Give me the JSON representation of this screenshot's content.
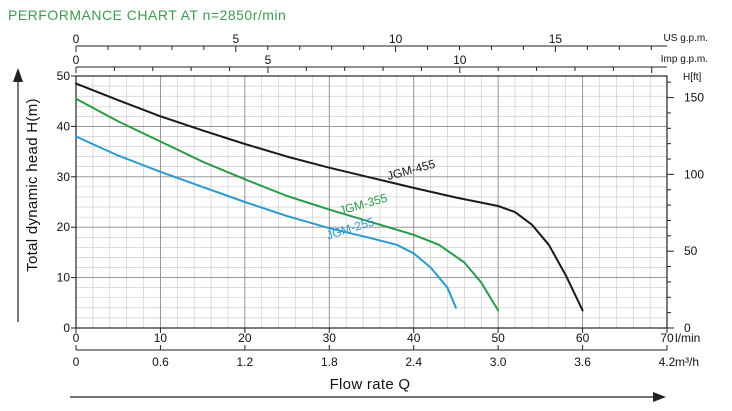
{
  "chart_data": {
    "type": "line",
    "title": "PERFORMANCE CHART AT n=2850r/min",
    "title_color": "#3f9a4f",
    "xlabel": "Flow rate Q",
    "ylabel": "Total dynamic head H(m)",
    "xlim": [
      0,
      70
    ],
    "ylim": [
      0,
      50
    ],
    "grid": true,
    "x_ticks": [
      0,
      10,
      20,
      30,
      40,
      50,
      60,
      70
    ],
    "x_unit": "l/min",
    "x_ticks_m3h": [
      "0",
      "0.6",
      "1.2",
      "1.8",
      "2.4",
      "3.0",
      "3.6",
      "4.2"
    ],
    "x_unit_m3h": "m³/h",
    "y_ticks": [
      0,
      10,
      20,
      30,
      40,
      50
    ],
    "y_right_ticks": [
      0,
      50,
      100,
      150
    ],
    "y_right_unit": "H[ft]",
    "top_us_ticks": [
      0,
      5,
      10,
      15
    ],
    "top_us_unit": "US g.p.m.",
    "top_imp_ticks": [
      0,
      5,
      10
    ],
    "top_imp_unit": "Imp g.p.m.",
    "series": [
      {
        "name": "JGM-455",
        "color": "#1a1a1a",
        "x": [
          0,
          5,
          10,
          15,
          20,
          25,
          30,
          35,
          40,
          45,
          50,
          52,
          54,
          56,
          58,
          60
        ],
        "y": [
          48.5,
          45.2,
          42.0,
          39.2,
          36.5,
          34.0,
          31.8,
          29.8,
          27.8,
          25.9,
          24.2,
          23.0,
          20.5,
          16.5,
          10.5,
          3.5
        ]
      },
      {
        "name": "JGM-355",
        "color": "#2a9a4a",
        "x": [
          0,
          5,
          10,
          15,
          20,
          25,
          30,
          35,
          40,
          43,
          46,
          48,
          50
        ],
        "y": [
          45.5,
          41.0,
          37.0,
          33.0,
          29.5,
          26.2,
          23.5,
          21.0,
          18.5,
          16.5,
          13.0,
          9.0,
          3.5
        ]
      },
      {
        "name": "JGM-255",
        "color": "#2a9ad0",
        "x": [
          0,
          5,
          10,
          15,
          20,
          25,
          30,
          35,
          38,
          40,
          42,
          44,
          45
        ],
        "y": [
          38.0,
          34.2,
          31.0,
          28.0,
          25.0,
          22.2,
          19.8,
          17.8,
          16.5,
          14.8,
          12.0,
          8.0,
          4.0
        ]
      }
    ]
  }
}
